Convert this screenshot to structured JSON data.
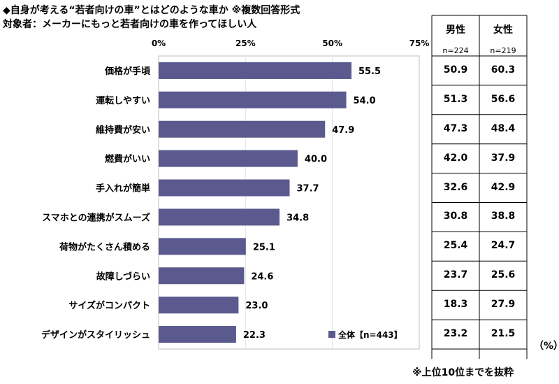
{
  "title_line1": "◆自身が考える“若者向けの車”とはどのような車か ※複数回答形式",
  "title_line2": "対象者：メーカーにもっと若者向けの車を作ってほしい人",
  "table": {
    "male_label": "男性",
    "female_label": "女性",
    "male_n": "n=224",
    "female_n": "n=219"
  },
  "unit_label": "（%）",
  "footnote": "※上位10位までを抜粋",
  "colors": {
    "bar": "#5b5a8e",
    "border": "#000000",
    "grid": "#bfbfbf"
  },
  "chart_data": {
    "type": "bar",
    "orientation": "horizontal",
    "categories": [
      "価格が手頃",
      "運転しやすい",
      "維持費が安い",
      "燃費がいい",
      "手入れが簡単",
      "スマホとの連携がスムーズ",
      "荷物がたくさん積める",
      "故障しづらい",
      "サイズがコンパクト",
      "デザインがスタイリッシュ"
    ],
    "series": [
      {
        "name": "全体【n=443】",
        "values": [
          55.5,
          54.0,
          47.9,
          40.0,
          37.7,
          34.8,
          25.1,
          24.6,
          23.0,
          22.3
        ]
      }
    ],
    "value_labels": [
      "55.5",
      "54.0",
      "47.9",
      "40.0",
      "37.7",
      "34.8",
      "25.1",
      "24.6",
      "23.0",
      "22.3"
    ],
    "xlim": [
      0,
      75
    ],
    "xticks": [
      "0%",
      "25%",
      "50%",
      "75%"
    ],
    "legend_position": "bottom-right",
    "male_values": [
      "50.9",
      "51.3",
      "47.3",
      "42.0",
      "32.6",
      "30.8",
      "25.4",
      "23.7",
      "18.3",
      "23.2"
    ],
    "female_values": [
      "60.3",
      "56.6",
      "48.4",
      "37.9",
      "42.9",
      "38.8",
      "24.7",
      "25.6",
      "27.9",
      "21.5"
    ]
  }
}
